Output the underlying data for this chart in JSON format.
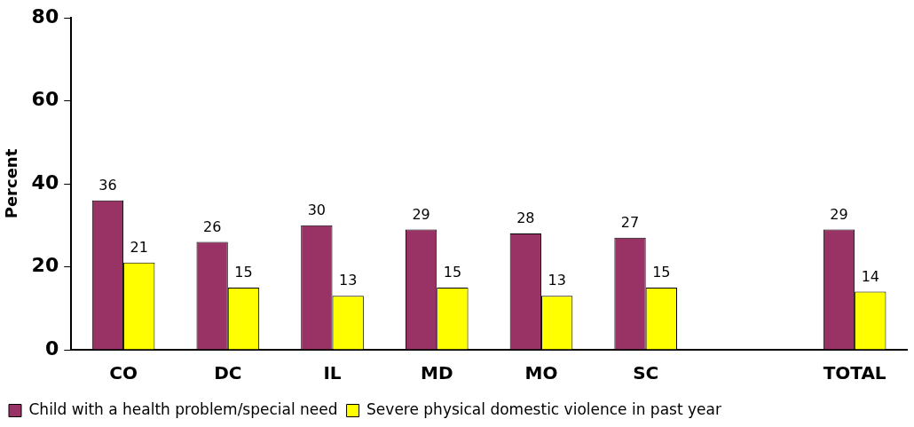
{
  "chart_data": {
    "type": "bar",
    "ylabel": "Percent",
    "categories": [
      "CO",
      "DC",
      "IL",
      "MD",
      "MO",
      "SC",
      null,
      "TOTAL"
    ],
    "series": [
      {
        "name": "Child with a health problem/special need",
        "color": "#993366",
        "values": [
          36,
          26,
          30,
          29,
          28,
          27,
          null,
          29
        ]
      },
      {
        "name": "Severe physical domestic violence in past year",
        "color": "#ffff00",
        "values": [
          21,
          15,
          13,
          15,
          13,
          15,
          null,
          14
        ]
      }
    ],
    "ylim": [
      0,
      80
    ],
    "yticks": [
      0,
      20,
      40,
      60,
      80
    ],
    "grid": false,
    "legend": "bottom left",
    "data_labels": true
  }
}
